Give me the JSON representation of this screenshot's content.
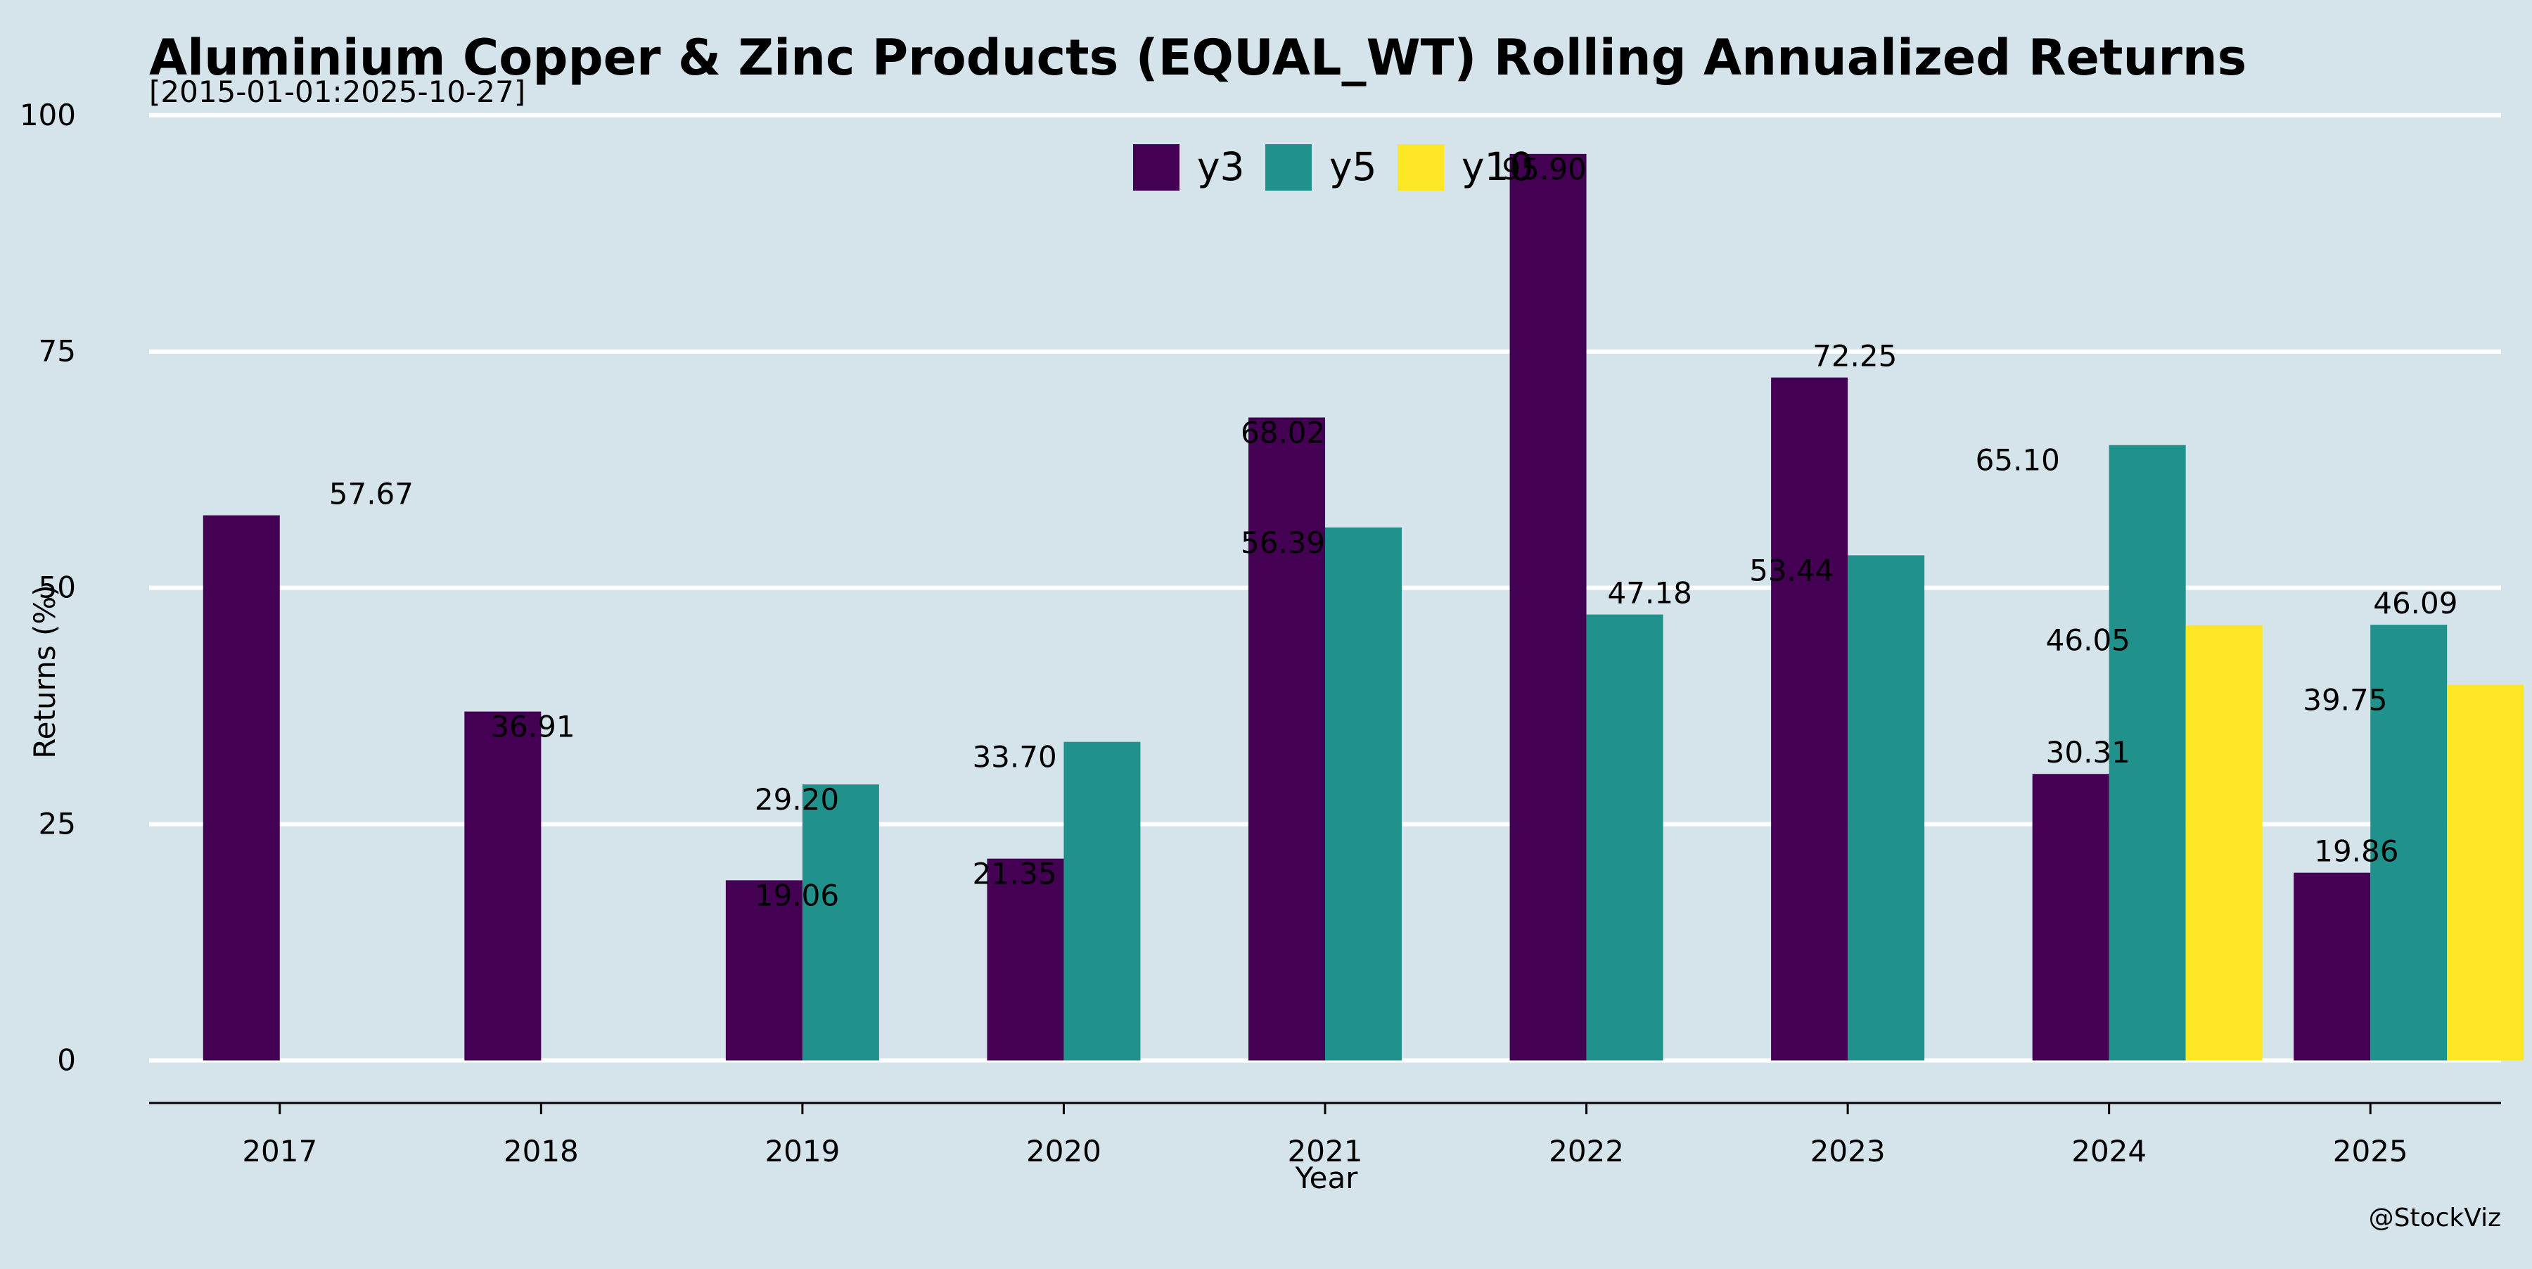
{
  "chart_data": {
    "type": "bar",
    "title": "Aluminium Copper & Zinc Products (EQUAL_WT) Rolling Annualized Returns",
    "subtitle": "[2015-01-01:2025-10-27]",
    "xlabel": "Year",
    "ylabel": "Returns (%)",
    "ylim": [
      -4.5,
      104
    ],
    "yticks": [
      0,
      25,
      50,
      75,
      100
    ],
    "categories": [
      "2017",
      "2018",
      "2019",
      "2020",
      "2021",
      "2022",
      "2023",
      "2024",
      "2025"
    ],
    "series": [
      {
        "name": "y3",
        "color": "#440154",
        "values": [
          57.67,
          36.91,
          19.06,
          21.35,
          68.02,
          95.9,
          72.25,
          30.31,
          19.86
        ]
      },
      {
        "name": "y5",
        "color": "#21918c",
        "values": [
          null,
          null,
          29.2,
          33.7,
          56.39,
          47.18,
          53.44,
          65.1,
          46.09
        ]
      },
      {
        "name": "y10",
        "color": "#fde725",
        "values": [
          null,
          null,
          null,
          null,
          null,
          null,
          null,
          46.05,
          39.75
        ]
      }
    ],
    "data_labels": [
      {
        "text": "57.67",
        "x": "2017",
        "y": 57.67
      },
      {
        "text": "36.91",
        "x": "2018",
        "y": 36.91
      },
      {
        "text": "29.20",
        "x": "2019",
        "y": 29.2
      },
      {
        "text": "19.06",
        "x": "2019",
        "y": 19.06
      },
      {
        "text": "33.70",
        "x": "2020",
        "y": 33.7
      },
      {
        "text": "21.35",
        "x": "2020",
        "y": 21.35
      },
      {
        "text": "68.02",
        "x": "2021",
        "y": 68.02
      },
      {
        "text": "56.39",
        "x": "2021",
        "y": 56.39
      },
      {
        "text": "95.90",
        "x": "2022",
        "y": 95.9
      },
      {
        "text": "47.18",
        "x": "2022",
        "y": 47.18
      },
      {
        "text": "72.25",
        "x": "2023",
        "y": 72.25
      },
      {
        "text": "53.44",
        "x": "2023",
        "y": 53.44
      },
      {
        "text": "65.10",
        "x": "2024",
        "y": 65.1
      },
      {
        "text": "46.05",
        "x": "2024",
        "y": 46.05
      },
      {
        "text": "30.31",
        "x": "2024",
        "y": 30.31
      },
      {
        "text": "46.09",
        "x": "2025",
        "y": 46.09
      },
      {
        "text": "39.75",
        "x": "2025",
        "y": 39.75
      },
      {
        "text": "19.86",
        "x": "2025",
        "y": 19.86
      }
    ],
    "legend_position": "top-center",
    "grid": true,
    "watermark": "@StockViz",
    "background_color": "#d5e4eb"
  }
}
